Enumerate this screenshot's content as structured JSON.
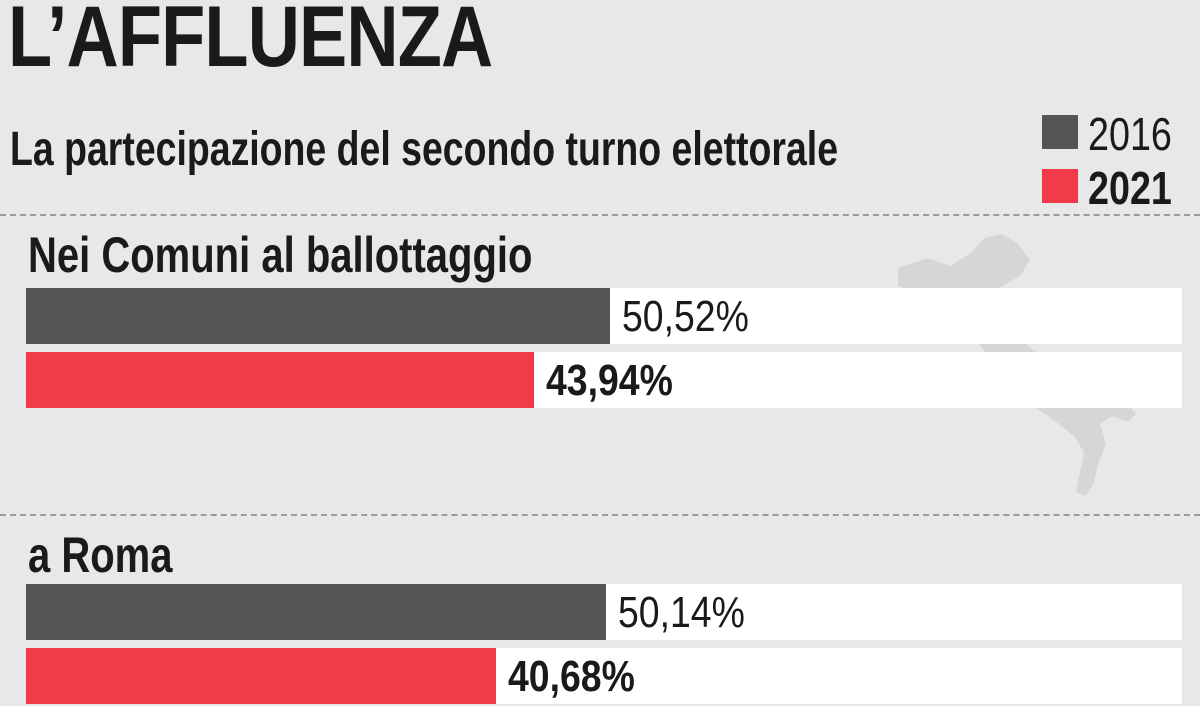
{
  "header": {
    "title": "L’AFFLUENZA",
    "subtitle": "La partecipazione del secondo turno elettorale"
  },
  "legend": [
    {
      "label": "2016",
      "color": "#555555"
    },
    {
      "label": "2021",
      "color": "#f23b4a"
    }
  ],
  "chart_data": {
    "type": "bar",
    "orientation": "horizontal",
    "title": "L’AFFLUENZA",
    "subtitle": "La partecipazione del secondo turno elettorale",
    "xlim": [
      0,
      100
    ],
    "categories": [
      "Nei Comuni al ballottaggio",
      "a Roma"
    ],
    "series": [
      {
        "name": "2016",
        "color": "#555555",
        "values": [
          50.52,
          50.14
        ],
        "labels": [
          "50,52%",
          "50,14%"
        ]
      },
      {
        "name": "2021",
        "color": "#f23b4a",
        "values": [
          43.94,
          40.68
        ],
        "labels": [
          "43,94%",
          "40,68%"
        ]
      }
    ]
  }
}
